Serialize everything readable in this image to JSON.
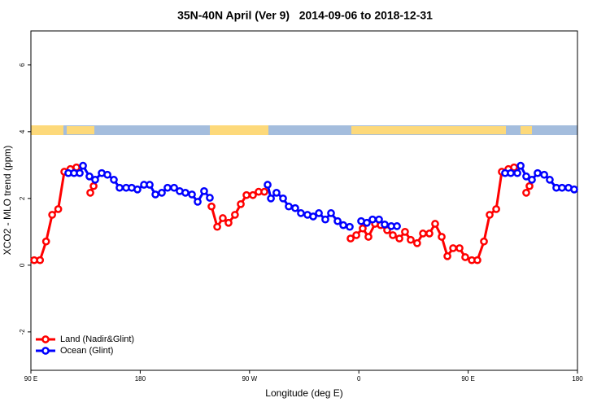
{
  "chart_data": {
    "type": "line",
    "title": "35N-40N April (Ver 9)   2014-09-06 to 2018-12-31",
    "x_label": "Longitude (deg E)",
    "y_label": "XCO2 - MLO trend (ppm)",
    "xlim": [
      90,
      540
    ],
    "xticks": [
      {
        "value": 90,
        "label": "90 E"
      },
      180,
      {
        "value": 270,
        "label": "90 W"
      },
      {
        "value": 360,
        "label": "0"
      },
      {
        "value": 450,
        "label": "90 E"
      },
      {
        "value": 540,
        "label": "180"
      }
    ],
    "ylim": [
      -3.15,
      7.02
    ],
    "yticks": [
      -2,
      0,
      2,
      4,
      6
    ],
    "legend": "bottom-left",
    "series": [
      {
        "name": "Land (Nadir&Glint)",
        "color": "#ff0000",
        "x": [
          92.7,
          97.5,
          102.5,
          107.5,
          112.5,
          117.5,
          122.5,
          127.5,
          133,
          138.9,
          141.6,
          200,
          238.7,
          243.4,
          248,
          252.7,
          258,
          262.8,
          267.5,
          272.8,
          277.5,
          282.2,
          320,
          353.2,
          357.9,
          363.2,
          367.9,
          373.3,
          378,
          383.3,
          388,
          393.4,
          398,
          402.7,
          408,
          412.8,
          418.1,
          422.8,
          428.2,
          432.9,
          437.6,
          442.9,
          447.6,
          453,
          457.6,
          463,
          467.7,
          473.1,
          477.7,
          483.1,
          487.8,
          493,
          497.8,
          500.5
        ],
        "values": [
          0.15,
          0.15,
          0.71,
          1.51,
          1.68,
          2.8,
          2.88,
          2.93,
          null,
          2.17,
          2.37,
          null,
          1.76,
          1.15,
          1.41,
          1.27,
          1.51,
          1.83,
          2.1,
          2.1,
          2.2,
          2.2,
          null,
          0.8,
          0.9,
          1.1,
          0.85,
          1.24,
          1.2,
          1.05,
          0.9,
          0.8,
          1.0,
          0.76,
          0.66,
          0.95,
          0.95,
          1.24,
          0.85,
          0.27,
          0.51,
          0.51,
          0.24,
          0.15,
          0.15,
          0.71,
          1.51,
          1.68,
          2.8,
          2.88,
          2.93,
          null,
          2.17,
          2.37
        ]
      },
      {
        "name": "Ocean (Glint)",
        "color": "#0000ff",
        "x": [
          120.8,
          125.5,
          130.2,
          132.9,
          138.2,
          142.9,
          148.3,
          153,
          158.3,
          163,
          168.4,
          173,
          177.7,
          183.1,
          187.8,
          192.5,
          197.8,
          202.5,
          207.9,
          212.5,
          217.2,
          222.6,
          227.3,
          232.6,
          237.3,
          260,
          284.9,
          287.6,
          292.2,
          297.6,
          302.3,
          307.6,
          312.3,
          317.7,
          322.4,
          327.1,
          332.4,
          337.1,
          342.5,
          347.2,
          352.5,
          357,
          361.9,
          366.6,
          371.3,
          376.6,
          381.3,
          386.7,
          391.4,
          430,
          480.4,
          485.1,
          490.5,
          493.2,
          497.8,
          502.5,
          507.2,
          512.6,
          517.2,
          522.6,
          527.3,
          532.6,
          537.3
        ],
        "values": [
          2.76,
          2.76,
          2.76,
          2.98,
          2.66,
          2.56,
          2.76,
          2.71,
          2.56,
          2.32,
          2.32,
          2.32,
          2.27,
          2.41,
          2.41,
          2.12,
          2.17,
          2.32,
          2.32,
          2.22,
          2.17,
          2.12,
          1.9,
          2.22,
          2.02,
          null,
          2.41,
          2.0,
          2.17,
          2.0,
          1.76,
          1.71,
          1.56,
          1.51,
          1.46,
          1.56,
          1.37,
          1.56,
          1.32,
          1.2,
          1.15,
          null,
          1.32,
          1.27,
          1.37,
          1.37,
          1.22,
          1.17,
          1.17,
          null,
          2.76,
          2.76,
          2.76,
          2.98,
          2.66,
          2.56,
          2.76,
          2.71,
          2.56,
          2.32,
          2.32,
          2.32,
          2.27
        ]
      }
    ]
  }
}
